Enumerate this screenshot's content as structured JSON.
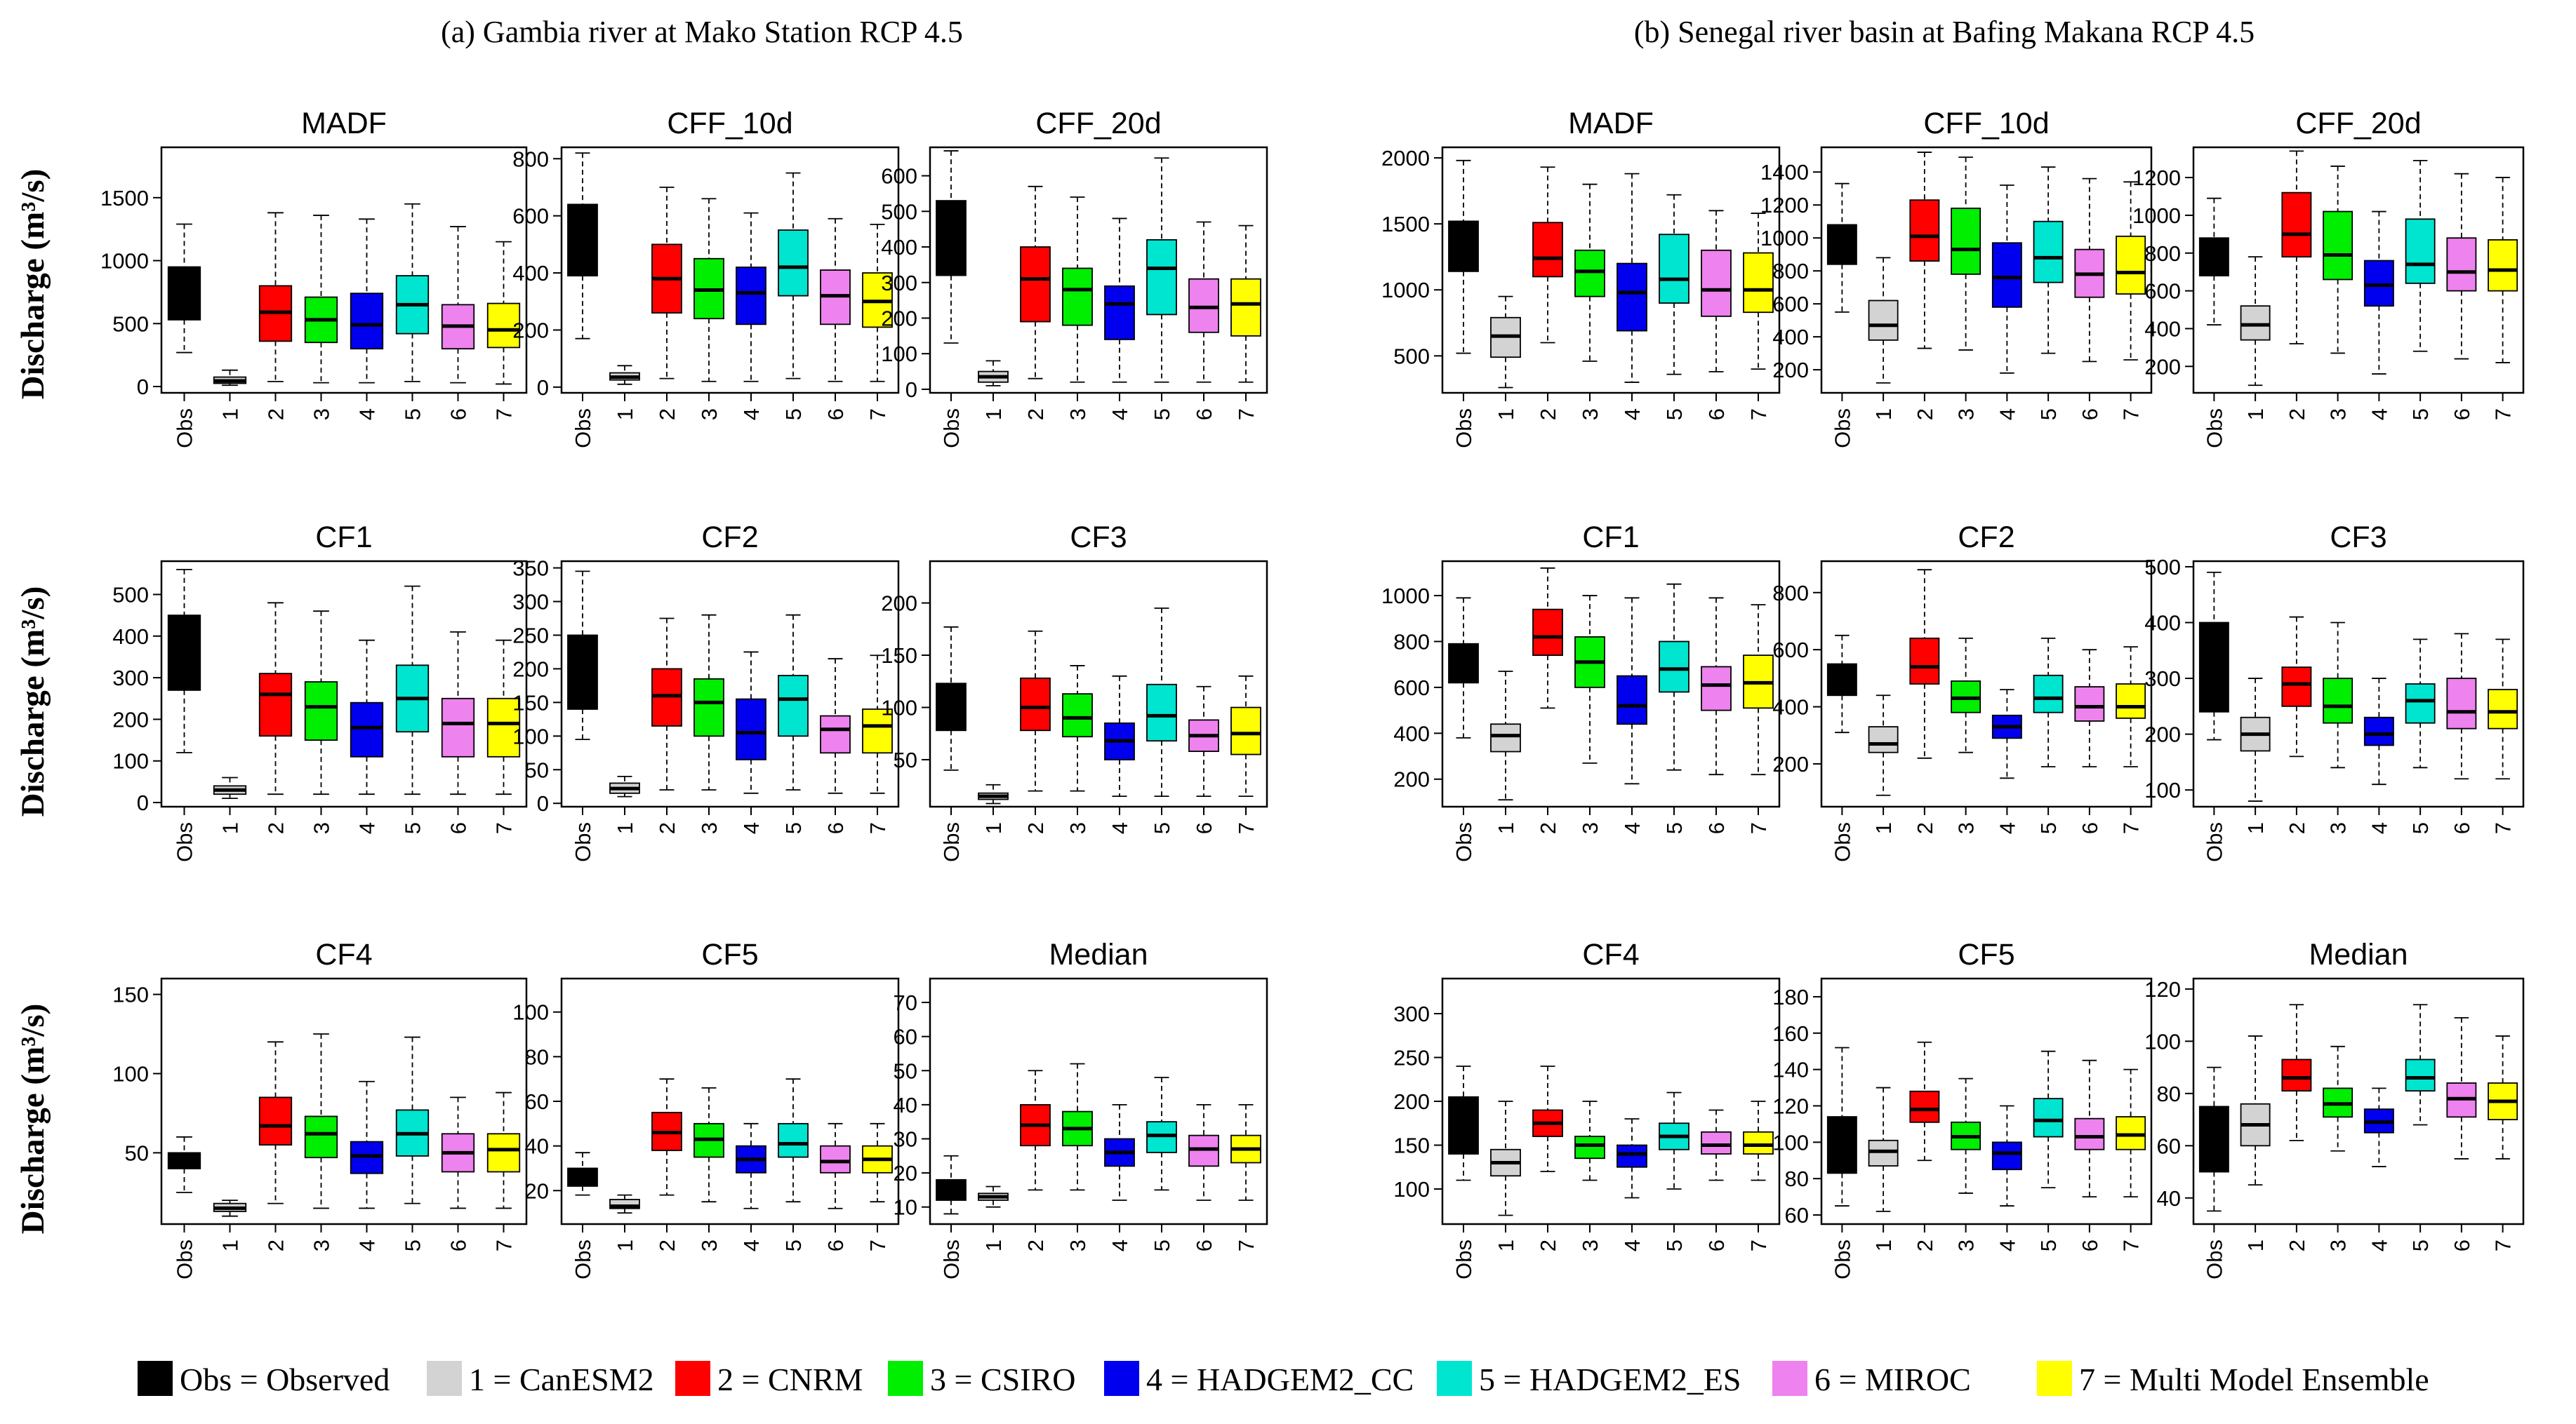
{
  "panels": {
    "left_title": "(a) Gambia river at Mako Station RCP 4.5",
    "right_title": "(b) Senegal river basin at Bafing Makana RCP 4.5"
  },
  "ylabel": "Discharge (m³/s)",
  "categories": [
    "Obs",
    "1",
    "2",
    "3",
    "4",
    "5",
    "6",
    "7"
  ],
  "colors": [
    "#000000",
    "#d3d3d3",
    "#ff0000",
    "#00ee00",
    "#0000ee",
    "#00e5d0",
    "#ee82ee",
    "#ffff00"
  ],
  "legend": [
    {
      "label": "Obs = Observed",
      "color": "#000000"
    },
    {
      "label": "1 = CanESM2",
      "color": "#d3d3d3"
    },
    {
      "label": "2 = CNRM",
      "color": "#ff0000"
    },
    {
      "label": "3 = CSIRO",
      "color": "#00ee00"
    },
    {
      "label": "4 = HADGEM2_CC",
      "color": "#0000ee"
    },
    {
      "label": "5 = HADGEM2_ES",
      "color": "#00e5d0"
    },
    {
      "label": "6 = MIROC",
      "color": "#ee82ee"
    },
    {
      "label": "7 = Multi Model Ensemble",
      "color": "#ffff00"
    }
  ],
  "chart_data": [
    {
      "type": "boxplot",
      "panel": "a",
      "title": "MADF",
      "ylim": [
        -50,
        1900
      ],
      "yticks": [
        0,
        500,
        1000,
        1500
      ],
      "series": [
        [
          270,
          530,
          750,
          950,
          1290
        ],
        [
          10,
          25,
          45,
          75,
          130
        ],
        [
          40,
          360,
          590,
          800,
          1380
        ],
        [
          30,
          350,
          530,
          710,
          1360
        ],
        [
          30,
          300,
          490,
          740,
          1330
        ],
        [
          40,
          420,
          650,
          880,
          1450
        ],
        [
          30,
          300,
          480,
          650,
          1270
        ],
        [
          20,
          310,
          450,
          660,
          1150
        ]
      ]
    },
    {
      "type": "boxplot",
      "panel": "a",
      "title": "CFF_10d",
      "ylim": [
        -20,
        840
      ],
      "yticks": [
        0,
        200,
        400,
        600,
        800
      ],
      "series": [
        [
          170,
          390,
          510,
          640,
          820
        ],
        [
          10,
          25,
          35,
          50,
          75
        ],
        [
          30,
          260,
          380,
          500,
          700
        ],
        [
          20,
          240,
          340,
          450,
          660
        ],
        [
          20,
          220,
          330,
          420,
          610
        ],
        [
          30,
          320,
          420,
          550,
          750
        ],
        [
          20,
          220,
          320,
          410,
          590
        ],
        [
          20,
          210,
          300,
          400,
          570
        ]
      ]
    },
    {
      "type": "boxplot",
      "panel": "a",
      "title": "CFF_20d",
      "ylim": [
        -10,
        680
      ],
      "yticks": [
        0,
        100,
        200,
        300,
        400,
        500,
        600
      ],
      "series": [
        [
          130,
          320,
          420,
          530,
          670
        ],
        [
          10,
          20,
          35,
          50,
          80
        ],
        [
          30,
          190,
          310,
          400,
          570
        ],
        [
          20,
          180,
          280,
          340,
          540
        ],
        [
          20,
          140,
          240,
          290,
          480
        ],
        [
          20,
          210,
          340,
          420,
          650
        ],
        [
          20,
          160,
          230,
          310,
          470
        ],
        [
          20,
          150,
          240,
          310,
          460
        ]
      ]
    },
    {
      "type": "boxplot",
      "panel": "a",
      "title": "CF1",
      "ylim": [
        -10,
        580
      ],
      "yticks": [
        0,
        100,
        200,
        300,
        400,
        500
      ],
      "series": [
        [
          120,
          270,
          360,
          450,
          560
        ],
        [
          10,
          20,
          30,
          40,
          60
        ],
        [
          20,
          160,
          260,
          310,
          480
        ],
        [
          20,
          150,
          230,
          290,
          460
        ],
        [
          20,
          110,
          180,
          240,
          390
        ],
        [
          20,
          170,
          250,
          330,
          520
        ],
        [
          20,
          110,
          190,
          250,
          410
        ],
        [
          20,
          110,
          190,
          250,
          390
        ]
      ]
    },
    {
      "type": "boxplot",
      "panel": "a",
      "title": "CF2",
      "ylim": [
        -5,
        360
      ],
      "yticks": [
        0,
        50,
        100,
        150,
        200,
        250,
        300,
        350
      ],
      "series": [
        [
          95,
          140,
          200,
          250,
          345
        ],
        [
          10,
          15,
          22,
          30,
          40
        ],
        [
          20,
          115,
          160,
          200,
          275
        ],
        [
          20,
          100,
          150,
          185,
          280
        ],
        [
          15,
          65,
          105,
          155,
          225
        ],
        [
          20,
          100,
          155,
          190,
          280
        ],
        [
          15,
          75,
          110,
          130,
          215
        ],
        [
          15,
          75,
          115,
          140,
          220
        ]
      ]
    },
    {
      "type": "boxplot",
      "panel": "a",
      "title": "CF3",
      "ylim": [
        5,
        240
      ],
      "yticks": [
        50,
        100,
        150,
        200
      ],
      "series": [
        [
          40,
          78,
          100,
          123,
          177
        ],
        [
          8,
          12,
          15,
          18,
          26
        ],
        [
          20,
          78,
          100,
          128,
          173
        ],
        [
          20,
          72,
          90,
          113,
          140
        ],
        [
          15,
          50,
          68,
          85,
          130
        ],
        [
          15,
          68,
          92,
          122,
          195
        ],
        [
          15,
          58,
          73,
          88,
          120
        ],
        [
          15,
          55,
          75,
          100,
          130
        ]
      ]
    },
    {
      "type": "boxplot",
      "panel": "a",
      "title": "CF4",
      "ylim": [
        5,
        160
      ],
      "yticks": [
        50,
        100,
        150
      ],
      "series": [
        [
          25,
          40,
          45,
          50,
          60
        ],
        [
          10,
          13,
          15,
          18,
          20
        ],
        [
          18,
          55,
          67,
          85,
          120
        ],
        [
          15,
          47,
          62,
          73,
          125
        ],
        [
          15,
          37,
          48,
          57,
          95
        ],
        [
          18,
          48,
          62,
          77,
          123
        ],
        [
          15,
          38,
          50,
          62,
          85
        ],
        [
          15,
          38,
          52,
          62,
          88
        ]
      ]
    },
    {
      "type": "boxplot",
      "panel": "a",
      "title": "CF5",
      "ylim": [
        5,
        115
      ],
      "yticks": [
        20,
        40,
        60,
        80,
        100
      ],
      "series": [
        [
          18,
          22,
          25,
          30,
          37
        ],
        [
          10,
          12,
          13,
          16,
          18
        ],
        [
          18,
          38,
          46,
          55,
          70
        ],
        [
          15,
          35,
          43,
          50,
          66
        ],
        [
          12,
          28,
          34,
          40,
          50
        ],
        [
          15,
          35,
          41,
          50,
          70
        ],
        [
          12,
          28,
          33,
          40,
          50
        ],
        [
          15,
          28,
          34,
          40,
          50
        ]
      ]
    },
    {
      "type": "boxplot",
      "panel": "a",
      "title": "Median",
      "ylim": [
        5,
        77
      ],
      "yticks": [
        10,
        20,
        30,
        40,
        50,
        60,
        70
      ],
      "series": [
        [
          8,
          12,
          14,
          18,
          25
        ],
        [
          10,
          12,
          13,
          14,
          16
        ],
        [
          15,
          28,
          34,
          40,
          50
        ],
        [
          15,
          28,
          33,
          38,
          52
        ],
        [
          12,
          22,
          26,
          30,
          40
        ],
        [
          15,
          26,
          31,
          35,
          48
        ],
        [
          12,
          22,
          27,
          31,
          40
        ],
        [
          12,
          23,
          27,
          31,
          40
        ]
      ]
    },
    {
      "type": "boxplot",
      "panel": "b",
      "title": "MADF",
      "ylim": [
        220,
        2080
      ],
      "yticks": [
        500,
        1000,
        1500,
        2000
      ],
      "series": [
        [
          520,
          1140,
          1330,
          1520,
          1980
        ],
        [
          260,
          490,
          650,
          790,
          950
        ],
        [
          600,
          1100,
          1240,
          1510,
          1930
        ],
        [
          460,
          950,
          1140,
          1300,
          1800
        ],
        [
          300,
          690,
          980,
          1200,
          1880
        ],
        [
          360,
          900,
          1080,
          1420,
          1720
        ],
        [
          380,
          800,
          1000,
          1300,
          1600
        ],
        [
          400,
          830,
          1000,
          1280,
          1580
        ]
      ]
    },
    {
      "type": "boxplot",
      "panel": "b",
      "title": "CFF_10d",
      "ylim": [
        60,
        1550
      ],
      "yticks": [
        200,
        400,
        600,
        800,
        1000,
        1200,
        1400
      ],
      "series": [
        [
          550,
          840,
          960,
          1080,
          1330
        ],
        [
          120,
          380,
          470,
          620,
          880
        ],
        [
          330,
          860,
          1010,
          1230,
          1520
        ],
        [
          320,
          780,
          930,
          1180,
          1490
        ],
        [
          180,
          580,
          760,
          970,
          1320
        ],
        [
          300,
          730,
          880,
          1100,
          1430
        ],
        [
          250,
          640,
          780,
          930,
          1360
        ],
        [
          260,
          660,
          790,
          1010,
          1340
        ]
      ]
    },
    {
      "type": "boxplot",
      "panel": "b",
      "title": "CFF_20d",
      "ylim": [
        60,
        1360
      ],
      "yticks": [
        200,
        400,
        600,
        800,
        1000,
        1200
      ],
      "series": [
        [
          420,
          680,
          790,
          880,
          1090
        ],
        [
          100,
          340,
          420,
          520,
          780
        ],
        [
          320,
          780,
          900,
          1120,
          1340
        ],
        [
          270,
          660,
          790,
          1020,
          1260
        ],
        [
          160,
          520,
          630,
          760,
          1020
        ],
        [
          280,
          640,
          740,
          980,
          1290
        ],
        [
          240,
          600,
          700,
          880,
          1220
        ],
        [
          220,
          600,
          710,
          870,
          1200
        ]
      ]
    },
    {
      "type": "boxplot",
      "panel": "b",
      "title": "CF1",
      "ylim": [
        80,
        1150
      ],
      "yticks": [
        200,
        400,
        600,
        800,
        1000
      ],
      "series": [
        [
          380,
          620,
          700,
          790,
          990
        ],
        [
          110,
          320,
          390,
          440,
          670
        ],
        [
          510,
          740,
          820,
          940,
          1120
        ],
        [
          270,
          600,
          710,
          820,
          1000
        ],
        [
          180,
          440,
          520,
          650,
          990
        ],
        [
          240,
          580,
          680,
          800,
          1050
        ],
        [
          220,
          500,
          610,
          690,
          990
        ],
        [
          220,
          510,
          620,
          740,
          960
        ]
      ]
    },
    {
      "type": "boxplot",
      "panel": "b",
      "title": "CF2",
      "ylim": [
        50,
        910
      ],
      "yticks": [
        200,
        400,
        600,
        800
      ],
      "series": [
        [
          310,
          440,
          500,
          550,
          650
        ],
        [
          90,
          240,
          270,
          330,
          440
        ],
        [
          220,
          480,
          540,
          640,
          880
        ],
        [
          240,
          380,
          430,
          490,
          640
        ],
        [
          150,
          290,
          330,
          370,
          460
        ],
        [
          190,
          380,
          430,
          510,
          640
        ],
        [
          190,
          350,
          400,
          470,
          600
        ],
        [
          190,
          360,
          400,
          480,
          610
        ]
      ]
    },
    {
      "type": "boxplot",
      "panel": "b",
      "title": "CF3",
      "ylim": [
        70,
        510
      ],
      "yticks": [
        100,
        200,
        300,
        400,
        500
      ],
      "series": [
        [
          190,
          240,
          320,
          400,
          490
        ],
        [
          80,
          170,
          200,
          230,
          300
        ],
        [
          160,
          250,
          290,
          320,
          410
        ],
        [
          140,
          220,
          250,
          300,
          400
        ],
        [
          110,
          180,
          200,
          230,
          300
        ],
        [
          140,
          220,
          260,
          290,
          370
        ],
        [
          120,
          210,
          240,
          300,
          380
        ],
        [
          120,
          210,
          240,
          280,
          370
        ]
      ]
    },
    {
      "type": "boxplot",
      "panel": "b",
      "title": "CF4",
      "ylim": [
        60,
        340
      ],
      "yticks": [
        100,
        150,
        200,
        250,
        300
      ],
      "series": [
        [
          110,
          140,
          180,
          205,
          240
        ],
        [
          70,
          115,
          130,
          145,
          200
        ],
        [
          120,
          160,
          175,
          190,
          240
        ],
        [
          110,
          135,
          150,
          160,
          200
        ],
        [
          90,
          125,
          140,
          150,
          180
        ],
        [
          100,
          145,
          160,
          175,
          210
        ],
        [
          110,
          140,
          150,
          165,
          190
        ],
        [
          110,
          140,
          150,
          165,
          200
        ]
      ]
    },
    {
      "type": "boxplot",
      "panel": "b",
      "title": "CF5",
      "ylim": [
        55,
        190
      ],
      "yticks": [
        60,
        80,
        100,
        120,
        140,
        160,
        180
      ],
      "series": [
        [
          65,
          83,
          96,
          114,
          152
        ],
        [
          62,
          87,
          95,
          101,
          130
        ],
        [
          90,
          111,
          118,
          128,
          155
        ],
        [
          72,
          96,
          103,
          111,
          135
        ],
        [
          65,
          85,
          94,
          100,
          120
        ],
        [
          75,
          103,
          112,
          124,
          150
        ],
        [
          70,
          96,
          103,
          113,
          145
        ],
        [
          70,
          96,
          104,
          114,
          140
        ]
      ]
    },
    {
      "type": "boxplot",
      "panel": "b",
      "title": "Median",
      "ylim": [
        30,
        124
      ],
      "yticks": [
        40,
        60,
        80,
        100,
        120
      ],
      "series": [
        [
          35,
          50,
          55,
          75,
          90
        ],
        [
          45,
          60,
          68,
          76,
          102
        ],
        [
          62,
          81,
          86,
          93,
          114
        ],
        [
          58,
          71,
          76,
          82,
          98
        ],
        [
          52,
          65,
          69,
          74,
          82
        ],
        [
          68,
          81,
          86,
          93,
          114
        ],
        [
          55,
          71,
          78,
          84,
          109
        ],
        [
          55,
          70,
          77,
          84,
          102
        ]
      ]
    }
  ]
}
